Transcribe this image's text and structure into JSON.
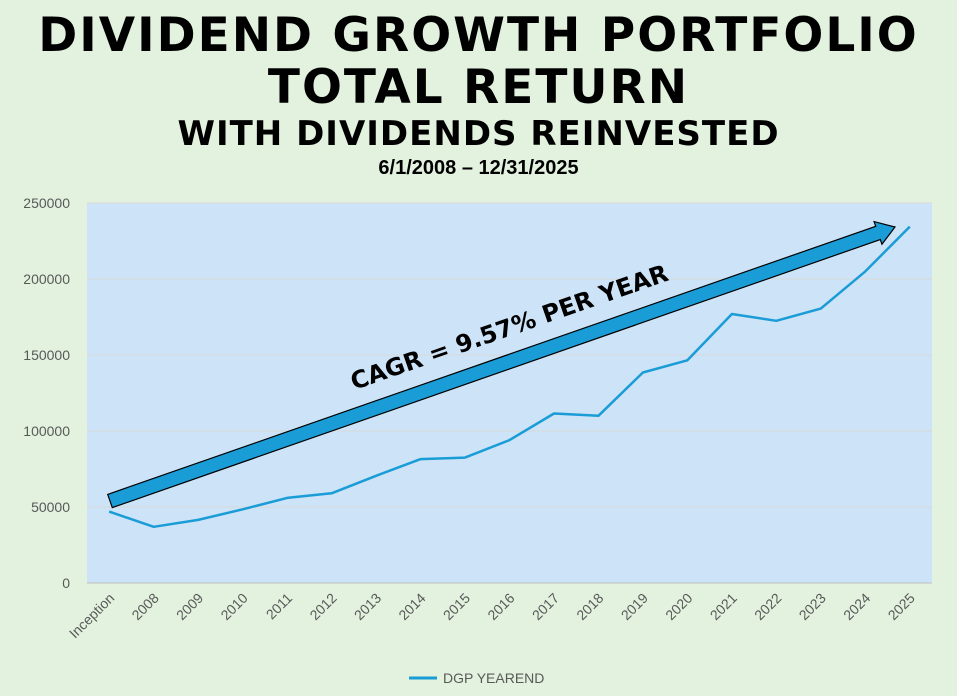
{
  "titles": {
    "line1": "DIVIDEND GROWTH PORTFOLIO",
    "line2": "TOTAL RETURN",
    "line3": "WITH DIVIDENDS REINVESTED",
    "date_range": "6/1/2008 – 12/31/2025"
  },
  "annotation": {
    "text": "CAGR = 9.57% PER YEAR"
  },
  "colors": {
    "background": "#e3f2df",
    "plot_area": "#cce3f8",
    "line": "#1a9cd6",
    "arrow": "#1a9cd6",
    "grid": "#d9d9d9"
  },
  "chart_data": {
    "type": "line",
    "title": "DIVIDEND GROWTH PORTFOLIO TOTAL RETURN WITH DIVIDENDS REINVESTED",
    "subtitle": "6/1/2008 – 12/31/2025",
    "categories": [
      "Inception",
      "2008",
      "2009",
      "2010",
      "2011",
      "2012",
      "2013",
      "2014",
      "2015",
      "2016",
      "2017",
      "2018",
      "2019",
      "2020",
      "2021",
      "2022",
      "2023",
      "2024",
      "2025"
    ],
    "series": [
      {
        "name": "DGP YEAREND",
        "values": [
          47000,
          37000,
          41500,
          48500,
          56000,
          59000,
          70500,
          81500,
          82500,
          94000,
          111500,
          110000,
          138500,
          146500,
          177000,
          172500,
          180500,
          205000,
          234500
        ]
      }
    ],
    "ylim": [
      0,
      250000
    ],
    "yticks": [
      0,
      50000,
      100000,
      150000,
      200000,
      250000
    ],
    "grid": true,
    "legend": "bottom-center",
    "xlabel": "",
    "ylabel": ""
  }
}
